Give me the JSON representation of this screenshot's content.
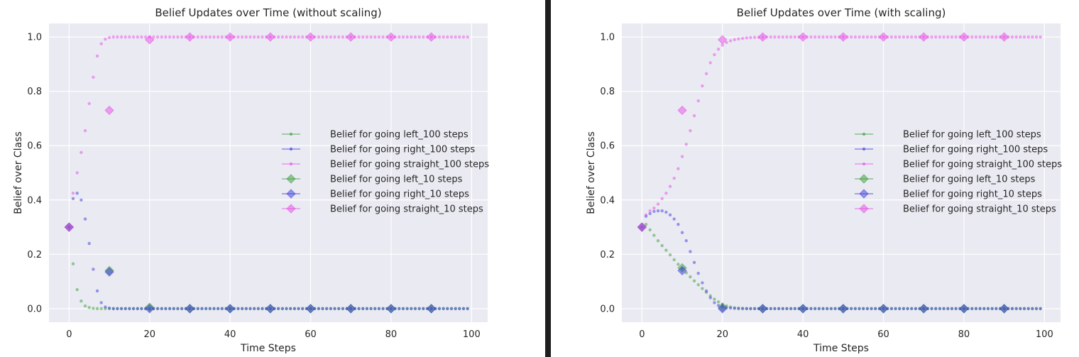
{
  "chart_data": [
    {
      "type": "line",
      "title": "Belief Updates over Time (without scaling)",
      "xlabel": "Time Steps",
      "ylabel": "Belief over Class",
      "xlim": [
        -5,
        104
      ],
      "ylim": [
        -0.05,
        1.05
      ],
      "xticks": [
        "0",
        "20",
        "40",
        "60",
        "80",
        "100"
      ],
      "yticks": [
        "0.0",
        "0.2",
        "0.4",
        "0.6",
        "0.8",
        "1.0"
      ],
      "grid": true,
      "legend_position": "center-right",
      "series": [
        {
          "name": "Belief for going left_100 steps",
          "color": "#3a9b3a",
          "marker": "dot",
          "x": [
            0,
            1,
            2,
            3,
            4,
            5,
            6,
            7,
            8,
            9,
            10
          ],
          "y": [
            0.3,
            0.165,
            0.07,
            0.028,
            0.01,
            0.004,
            0.001,
            0.0,
            0.0,
            0.0,
            0.0
          ],
          "fill_to": 99,
          "fill_value": 0.0
        },
        {
          "name": "Belief for going right_100 steps",
          "color": "#3b3bde",
          "marker": "dot",
          "x": [
            0,
            1,
            2,
            3,
            4,
            5,
            6,
            7,
            8,
            9,
            10
          ],
          "y": [
            0.3,
            0.405,
            0.425,
            0.4,
            0.33,
            0.24,
            0.145,
            0.065,
            0.022,
            0.006,
            0.002
          ],
          "fill_to": 99,
          "fill_value": 0.0
        },
        {
          "name": "Belief for going straight_100 steps",
          "color": "#e84ce8",
          "marker": "dot",
          "x": [
            0,
            1,
            2,
            3,
            4,
            5,
            6,
            7,
            8,
            9,
            10
          ],
          "y": [
            0.3,
            0.425,
            0.5,
            0.575,
            0.655,
            0.755,
            0.852,
            0.93,
            0.975,
            0.992,
            0.998
          ],
          "fill_to": 99,
          "fill_value": 1.0
        },
        {
          "name": "Belief for going left_10 steps",
          "color": "#3a9b3a",
          "marker": "diamond",
          "x": [
            0,
            10,
            20,
            30,
            40,
            50,
            60,
            70,
            80,
            90
          ],
          "y": [
            0.3,
            0.14,
            0.005,
            0.0,
            0.0,
            0.0,
            0.0,
            0.0,
            0.0,
            0.0
          ]
        },
        {
          "name": "Belief for going right_10 steps",
          "color": "#3b3bde",
          "marker": "diamond",
          "x": [
            0,
            10,
            20,
            30,
            40,
            50,
            60,
            70,
            80,
            90
          ],
          "y": [
            0.3,
            0.135,
            0.0,
            0.0,
            0.0,
            0.0,
            0.0,
            0.0,
            0.0,
            0.0
          ]
        },
        {
          "name": "Belief for going straight_10 steps",
          "color": "#e84ce8",
          "marker": "diamond",
          "x": [
            0,
            10,
            20,
            30,
            40,
            50,
            60,
            70,
            80,
            90
          ],
          "y": [
            0.3,
            0.73,
            0.99,
            1.0,
            1.0,
            1.0,
            1.0,
            1.0,
            1.0,
            1.0
          ]
        }
      ]
    },
    {
      "type": "line",
      "title": "Belief Updates over Time (with scaling)",
      "xlabel": "Time Steps",
      "ylabel": "Belief over Class",
      "xlim": [
        -5,
        104
      ],
      "ylim": [
        -0.05,
        1.05
      ],
      "xticks": [
        "0",
        "20",
        "40",
        "60",
        "80",
        "100"
      ],
      "yticks": [
        "0.0",
        "0.2",
        "0.4",
        "0.6",
        "0.8",
        "1.0"
      ],
      "grid": true,
      "legend_position": "center-right",
      "series": [
        {
          "name": "Belief for going left_100 steps",
          "color": "#3a9b3a",
          "marker": "dot",
          "x": [
            0,
            1,
            2,
            3,
            4,
            5,
            6,
            7,
            8,
            9,
            10,
            11,
            12,
            13,
            14,
            15,
            16,
            17,
            18,
            19,
            20,
            21,
            22,
            23,
            24,
            25,
            26,
            27,
            28
          ],
          "y": [
            0.3,
            0.31,
            0.29,
            0.27,
            0.25,
            0.232,
            0.215,
            0.198,
            0.18,
            0.163,
            0.147,
            0.132,
            0.117,
            0.102,
            0.088,
            0.074,
            0.06,
            0.047,
            0.035,
            0.025,
            0.016,
            0.01,
            0.006,
            0.003,
            0.002,
            0.001,
            0.0,
            0.0,
            0.0
          ],
          "fill_to": 99,
          "fill_value": 0.0
        },
        {
          "name": "Belief for going right_100 steps",
          "color": "#3b3bde",
          "marker": "dot",
          "x": [
            0,
            1,
            2,
            3,
            4,
            5,
            6,
            7,
            8,
            9,
            10,
            11,
            12,
            13,
            14,
            15,
            16,
            17,
            18,
            19,
            20,
            21,
            22,
            23,
            24,
            25,
            26
          ],
          "y": [
            0.3,
            0.34,
            0.35,
            0.358,
            0.36,
            0.36,
            0.355,
            0.345,
            0.33,
            0.31,
            0.28,
            0.25,
            0.21,
            0.17,
            0.13,
            0.095,
            0.065,
            0.04,
            0.022,
            0.012,
            0.006,
            0.003,
            0.002,
            0.001,
            0.0,
            0.0,
            0.0
          ],
          "fill_to": 99,
          "fill_value": 0.0
        },
        {
          "name": "Belief for going straight_100 steps",
          "color": "#e84ce8",
          "marker": "dot",
          "x": [
            0,
            1,
            2,
            3,
            4,
            5,
            6,
            7,
            8,
            9,
            10,
            11,
            12,
            13,
            14,
            15,
            16,
            17,
            18,
            19,
            20,
            21,
            22,
            23,
            24,
            25,
            26,
            27,
            28,
            29,
            30
          ],
          "y": [
            0.3,
            0.345,
            0.36,
            0.37,
            0.385,
            0.405,
            0.425,
            0.45,
            0.48,
            0.515,
            0.56,
            0.605,
            0.655,
            0.71,
            0.765,
            0.82,
            0.865,
            0.905,
            0.935,
            0.955,
            0.97,
            0.98,
            0.986,
            0.99,
            0.993,
            0.995,
            0.997,
            0.998,
            0.999,
            0.999,
            1.0
          ],
          "fill_to": 99,
          "fill_value": 1.0
        },
        {
          "name": "Belief for going left_10 steps",
          "color": "#3a9b3a",
          "marker": "diamond",
          "x": [
            0,
            10,
            20,
            30,
            40,
            50,
            60,
            70,
            80,
            90
          ],
          "y": [
            0.3,
            0.15,
            0.005,
            0.0,
            0.0,
            0.0,
            0.0,
            0.0,
            0.0,
            0.0
          ]
        },
        {
          "name": "Belief for going right_10 steps",
          "color": "#3b3bde",
          "marker": "diamond",
          "x": [
            0,
            10,
            20,
            30,
            40,
            50,
            60,
            70,
            80,
            90
          ],
          "y": [
            0.3,
            0.14,
            0.0,
            0.0,
            0.0,
            0.0,
            0.0,
            0.0,
            0.0,
            0.0
          ]
        },
        {
          "name": "Belief for going straight_10 steps",
          "color": "#e84ce8",
          "marker": "diamond",
          "x": [
            0,
            10,
            20,
            30,
            40,
            50,
            60,
            70,
            80,
            90
          ],
          "y": [
            0.3,
            0.73,
            0.99,
            1.0,
            1.0,
            1.0,
            1.0,
            1.0,
            1.0,
            1.0
          ]
        }
      ]
    }
  ]
}
